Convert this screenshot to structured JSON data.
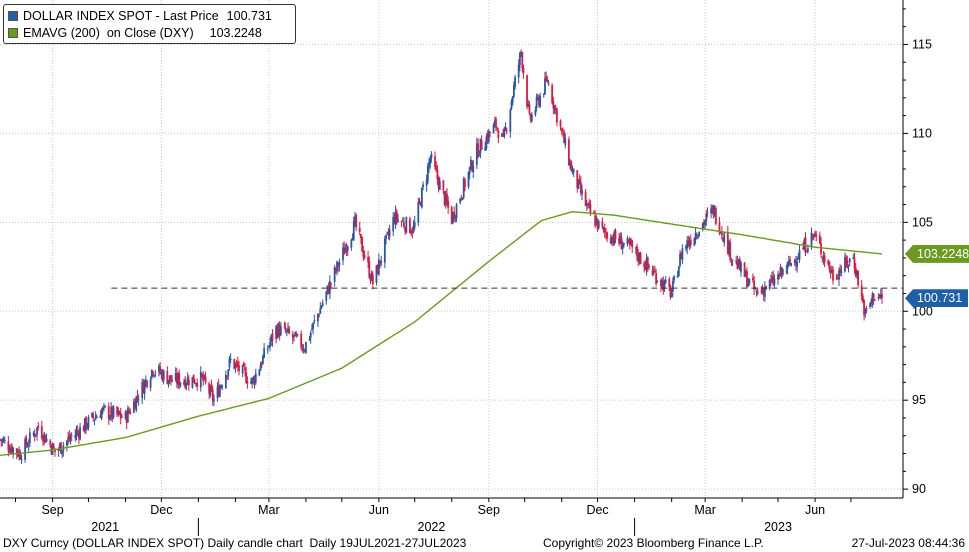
{
  "chart_data": {
    "type": "candlestick+line",
    "ylim": [
      89.5,
      117.5
    ],
    "yticks": [
      90,
      95,
      100,
      105,
      110,
      115
    ],
    "x_range": [
      "2021-07-19",
      "2023-07-27"
    ],
    "month_ticks": [
      {
        "label": "Sep",
        "date": "2021-09-01"
      },
      {
        "label": "Dec",
        "date": "2021-12-01"
      },
      {
        "label": "Mar",
        "date": "2022-03-01"
      },
      {
        "label": "Jun",
        "date": "2022-06-01"
      },
      {
        "label": "Sep",
        "date": "2022-09-01"
      },
      {
        "label": "Dec",
        "date": "2022-12-01"
      },
      {
        "label": "Mar",
        "date": "2023-03-01"
      },
      {
        "label": "Jun",
        "date": "2023-06-01"
      }
    ],
    "year_labels": [
      {
        "label": "2021",
        "date": "2021-10-15"
      },
      {
        "label": "2022",
        "date": "2022-07-15"
      },
      {
        "label": "2023",
        "date": "2023-05-01"
      }
    ],
    "year_separators": [
      "2022-01-01",
      "2023-01-01"
    ],
    "series": [
      {
        "name": "DOLLAR INDEX SPOT - Last Price",
        "value_label": "100.731",
        "last": 100.731,
        "color": "#1f5fa8",
        "up_color": "#2a56a8",
        "down_color": "#e0193c",
        "anchors": [
          [
            "2021-07-19",
            92.8
          ],
          [
            "2021-08-05",
            92.0
          ],
          [
            "2021-08-20",
            93.5
          ],
          [
            "2021-09-03",
            92.1
          ],
          [
            "2021-09-25",
            93.4
          ],
          [
            "2021-10-12",
            94.4
          ],
          [
            "2021-11-01",
            94.0
          ],
          [
            "2021-11-24",
            96.8
          ],
          [
            "2021-12-10",
            96.1
          ],
          [
            "2022-01-04",
            96.2
          ],
          [
            "2022-01-14",
            95.0
          ],
          [
            "2022-01-28",
            97.2
          ],
          [
            "2022-02-15",
            96.0
          ],
          [
            "2022-03-07",
            99.0
          ],
          [
            "2022-03-15",
            98.8
          ],
          [
            "2022-03-31",
            98.0
          ],
          [
            "2022-04-15",
            100.5
          ],
          [
            "2022-05-12",
            104.9
          ],
          [
            "2022-05-27",
            101.6
          ],
          [
            "2022-06-14",
            105.3
          ],
          [
            "2022-06-30",
            104.6
          ],
          [
            "2022-07-14",
            108.6
          ],
          [
            "2022-08-01",
            105.2
          ],
          [
            "2022-08-22",
            109.0
          ],
          [
            "2022-09-07",
            110.5
          ],
          [
            "2022-09-13",
            109.5
          ],
          [
            "2022-09-28",
            114.6
          ],
          [
            "2022-10-05",
            110.7
          ],
          [
            "2022-10-20",
            113.0
          ],
          [
            "2022-11-10",
            107.8
          ],
          [
            "2022-11-23",
            105.7
          ],
          [
            "2022-12-05",
            104.5
          ],
          [
            "2022-12-30",
            103.5
          ],
          [
            "2023-01-20",
            101.9
          ],
          [
            "2023-02-01",
            101.0
          ],
          [
            "2023-02-10",
            103.5
          ],
          [
            "2023-03-08",
            105.7
          ],
          [
            "2023-03-24",
            103.0
          ],
          [
            "2023-04-13",
            101.0
          ],
          [
            "2023-04-28",
            101.7
          ],
          [
            "2023-05-12",
            102.7
          ],
          [
            "2023-05-31",
            104.3
          ],
          [
            "2023-06-16",
            102.0
          ],
          [
            "2023-07-03",
            103.0
          ],
          [
            "2023-07-13",
            99.8
          ],
          [
            "2023-07-20",
            100.9
          ],
          [
            "2023-07-27",
            100.731
          ]
        ]
      },
      {
        "name": "EMAVG (200)  on Close (DXY)",
        "value_label": "103.2248",
        "last": 103.2248,
        "color": "#6a9a1f",
        "anchors": [
          [
            "2021-07-19",
            91.9
          ],
          [
            "2021-09-01",
            92.2
          ],
          [
            "2021-11-01",
            92.9
          ],
          [
            "2022-01-01",
            94.1
          ],
          [
            "2022-03-01",
            95.1
          ],
          [
            "2022-05-01",
            96.8
          ],
          [
            "2022-07-01",
            99.4
          ],
          [
            "2022-09-01",
            102.8
          ],
          [
            "2022-10-15",
            105.1
          ],
          [
            "2022-11-10",
            105.6
          ],
          [
            "2022-12-15",
            105.4
          ],
          [
            "2023-02-01",
            104.9
          ],
          [
            "2023-04-01",
            104.3
          ],
          [
            "2023-06-01",
            103.6
          ],
          [
            "2023-07-27",
            103.2248
          ]
        ]
      }
    ],
    "reference_line": 101.3,
    "grid": true,
    "legend_position": "top-left"
  },
  "footer": {
    "left": "DXY Curncy (DOLLAR INDEX SPOT) Daily candle chart  Daily 19JUL2021-27JUL2023",
    "center": "Copyright© 2023 Bloomberg Finance L.P.",
    "right": "27-Jul-2023 08:44:36"
  }
}
